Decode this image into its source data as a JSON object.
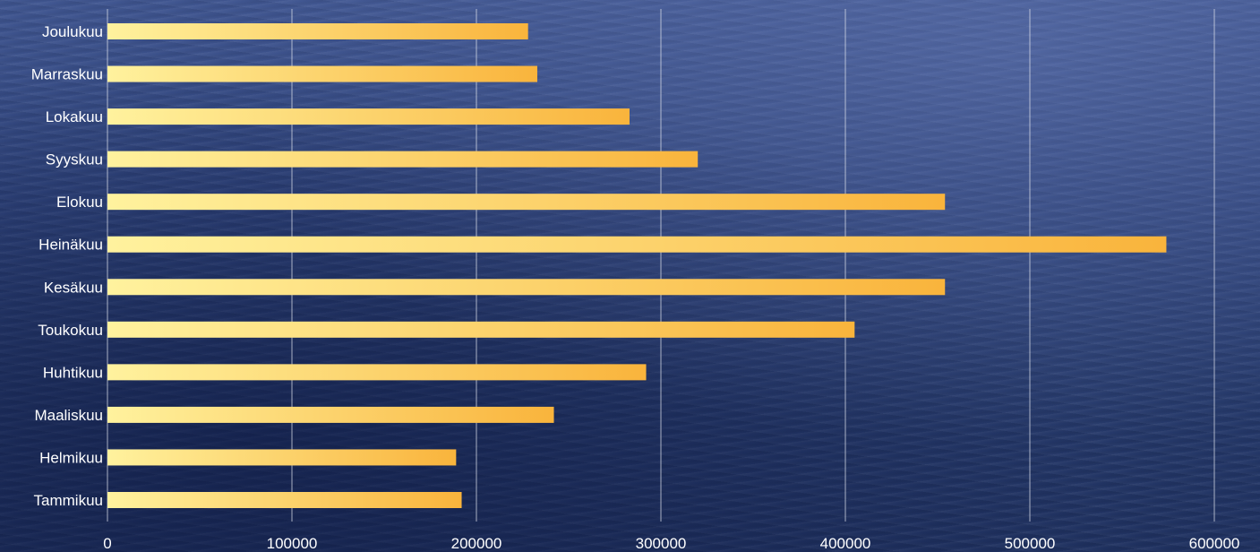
{
  "chart_data": {
    "type": "bar",
    "orientation": "horizontal",
    "categories": [
      "Tammikuu",
      "Helmikuu",
      "Maaliskuu",
      "Huhtikuu",
      "Toukokuu",
      "Kesäkuu",
      "Heinäkuu",
      "Elokuu",
      "Syyskuu",
      "Lokakuu",
      "Marraskuu",
      "Joulukuu"
    ],
    "values": [
      192000,
      189000,
      242000,
      292000,
      405000,
      454000,
      574000,
      454000,
      320000,
      283000,
      233000,
      228000
    ],
    "x_ticks": [
      "0",
      "100000",
      "200000",
      "300000",
      "400000",
      "500000",
      "600000"
    ],
    "xlim": [
      0,
      600000
    ],
    "grid": "vertical",
    "legend": "none",
    "title": "",
    "xlabel": "",
    "ylabel": "",
    "colors": {
      "bar_start": "#fff29e",
      "bar_end": "#f9b43c",
      "gridline": "#d9dde8",
      "label": "#ffffff"
    }
  }
}
